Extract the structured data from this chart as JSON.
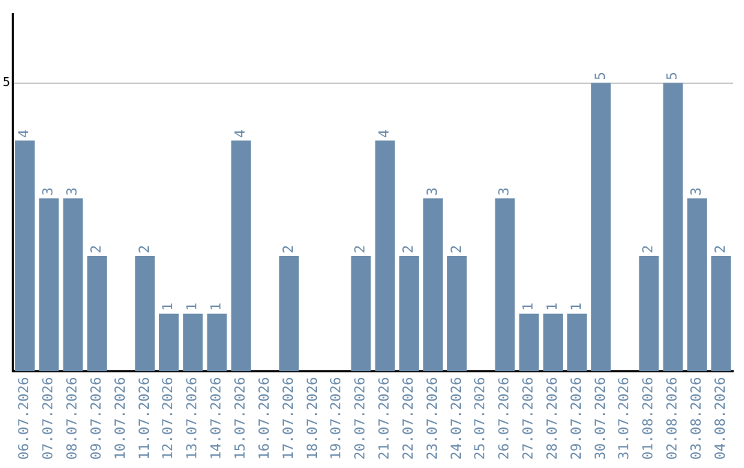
{
  "chart_data": {
    "type": "bar",
    "categories": [
      "06.07.2026",
      "07.07.2026",
      "08.07.2026",
      "09.07.2026",
      "10.07.2026",
      "11.07.2026",
      "12.07.2026",
      "13.07.2026",
      "14.07.2026",
      "15.07.2026",
      "16.07.2026",
      "17.07.2026",
      "18.07.2026",
      "19.07.2026",
      "20.07.2026",
      "21.07.2026",
      "22.07.2026",
      "23.07.2026",
      "24.07.2026",
      "25.07.2026",
      "26.07.2026",
      "27.07.2026",
      "28.07.2026",
      "29.07.2026",
      "30.07.2026",
      "31.07.2026",
      "01.08.2026",
      "02.08.2026",
      "03.08.2026",
      "04.08.2026"
    ],
    "values": [
      4,
      3,
      3,
      2,
      null,
      2,
      1,
      1,
      1,
      4,
      null,
      2,
      null,
      null,
      2,
      4,
      2,
      3,
      2,
      null,
      3,
      1,
      1,
      1,
      5,
      null,
      2,
      5,
      3,
      2
    ],
    "color": "#6b8cac",
    "ylim": [
      0,
      6.2
    ],
    "yticks": [
      5
    ],
    "grid": "y",
    "data_labels": true,
    "legend": false
  }
}
